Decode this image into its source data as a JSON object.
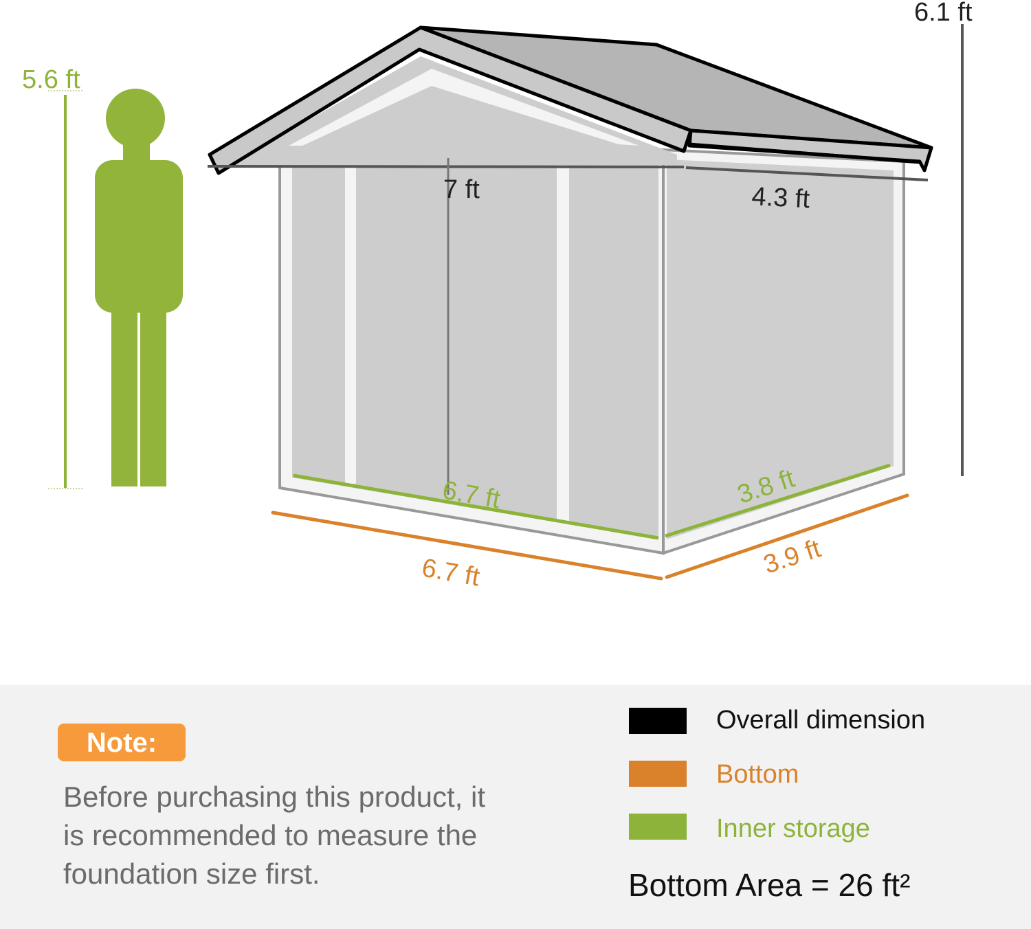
{
  "colors": {
    "overall": "#000000",
    "bottom": "#d9822b",
    "inner": "#8db33a",
    "person": "#92b43a",
    "note_badge": "#f79a3b",
    "panel_bg": "#f2f2f2"
  },
  "dimensions": {
    "person_height": "5.6 ft",
    "overall_height": "6.1 ft",
    "overall_width": "7 ft",
    "overall_depth": "4.3 ft",
    "inner_width": "6.7 ft",
    "inner_depth": "3.8 ft",
    "bottom_width": "6.7 ft",
    "bottom_depth": "3.9 ft"
  },
  "note": {
    "badge": "Note:",
    "lines": [
      "Before purchasing this product, it",
      "is recommended to measure the",
      "foundation size first."
    ]
  },
  "legend": [
    {
      "label": "Overall dimension",
      "color": "#000000"
    },
    {
      "label": "Bottom",
      "color": "#d9822b"
    },
    {
      "label": "Inner storage",
      "color": "#8db33a"
    }
  ],
  "bottom_area": "Bottom Area = 26 ft²"
}
